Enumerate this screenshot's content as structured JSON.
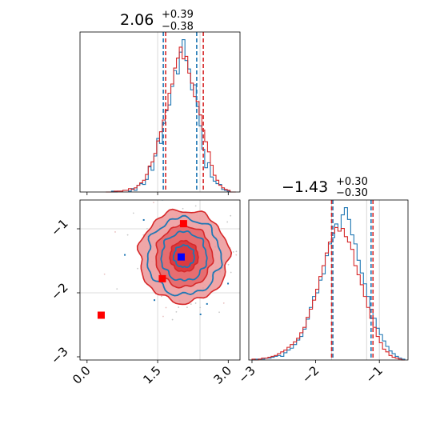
{
  "colors": {
    "blue": "#1f77b4",
    "red": "#d62728",
    "red_fill": "#e8868a",
    "grid": "#d0d0d0",
    "marker_blue": "#0000ff",
    "marker_red": "#ff0000"
  },
  "chart_data": [
    {
      "type": "histogram",
      "panel": "top-left",
      "title": {
        "value": "2.06",
        "plus": "+0.39",
        "minus": "−0.38"
      },
      "xlim": [
        -0.15,
        3.25
      ],
      "grid": true,
      "series": [
        {
          "name": "",
          "color": "blue",
          "bin_edges": [
            0.4,
            0.46,
            0.52,
            0.58,
            0.64,
            0.7,
            0.76,
            0.82,
            0.88,
            0.94,
            1.0,
            1.06,
            1.12,
            1.18,
            1.24,
            1.3,
            1.36,
            1.42,
            1.48,
            1.54,
            1.6,
            1.66,
            1.72,
            1.78,
            1.84,
            1.9,
            1.96,
            2.02,
            2.08,
            2.14,
            2.2,
            2.26,
            2.32,
            2.38,
            2.44,
            2.5,
            2.56,
            2.62,
            2.68,
            2.74,
            2.8,
            2.86,
            2.92,
            2.98,
            3.04,
            3.1,
            3.16
          ],
          "counts": [
            0,
            0,
            1,
            0,
            1,
            1,
            2,
            2,
            1,
            4,
            2,
            8,
            10,
            9,
            15,
            30,
            26,
            43,
            64,
            58,
            82,
            97,
            104,
            126,
            145,
            141,
            167,
            182,
            157,
            147,
            122,
            128,
            102,
            79,
            51,
            29,
            35,
            18,
            13,
            10,
            9,
            3,
            2,
            1,
            0,
            0
          ]
        },
        {
          "name": "",
          "color": "red",
          "bin_edges": [
            0.4,
            0.46,
            0.52,
            0.58,
            0.64,
            0.7,
            0.76,
            0.82,
            0.88,
            0.94,
            1.0,
            1.06,
            1.12,
            1.18,
            1.24,
            1.3,
            1.36,
            1.42,
            1.48,
            1.54,
            1.6,
            1.66,
            1.72,
            1.78,
            1.84,
            1.9,
            1.96,
            2.02,
            2.08,
            2.14,
            2.2,
            2.26,
            2.32,
            2.38,
            2.44,
            2.5,
            2.56,
            2.62,
            2.68,
            2.74,
            2.8,
            2.86,
            2.92,
            2.98,
            3.04,
            3.1,
            3.16
          ],
          "counts": [
            0,
            0,
            0,
            1,
            1,
            1,
            2,
            2,
            4,
            3,
            5,
            8,
            11,
            14,
            21,
            31,
            36,
            46,
            61,
            72,
            86,
            98,
            118,
            129,
            148,
            160,
            173,
            159,
            162,
            142,
            130,
            114,
            108,
            92,
            74,
            60,
            48,
            32,
            20,
            14,
            8,
            5,
            3,
            2,
            0,
            0
          ]
        }
      ],
      "vlines": [
        {
          "x": 1.62,
          "color": "blue"
        },
        {
          "x": 1.67,
          "color": "red"
        },
        {
          "x": 2.33,
          "color": "blue"
        },
        {
          "x": 2.47,
          "color": "red"
        }
      ],
      "lines": [
        {
          "x": 1.5,
          "color": "blue"
        },
        {
          "x": 2.4,
          "color": "blue"
        }
      ]
    },
    {
      "type": "histogram",
      "panel": "bottom-right",
      "title": {
        "value": "−1.43",
        "plus": "+0.30",
        "minus": "−0.30"
      },
      "xlim": [
        -3.05,
        -0.55
      ],
      "xticks": [
        -3,
        -2,
        -1
      ],
      "xtick_labels": [
        "−3",
        "−2",
        "−1"
      ],
      "grid": true,
      "series": [
        {
          "name": "",
          "color": "blue",
          "bin_edges": [
            -3.0,
            -2.95,
            -2.9,
            -2.85,
            -2.8,
            -2.75,
            -2.7,
            -2.65,
            -2.6,
            -2.55,
            -2.5,
            -2.45,
            -2.4,
            -2.35,
            -2.3,
            -2.25,
            -2.2,
            -2.15,
            -2.1,
            -2.05,
            -2.0,
            -1.95,
            -1.9,
            -1.85,
            -1.8,
            -1.75,
            -1.7,
            -1.65,
            -1.6,
            -1.55,
            -1.5,
            -1.45,
            -1.4,
            -1.35,
            -1.3,
            -1.25,
            -1.2,
            -1.15,
            -1.1,
            -1.05,
            -1.0,
            -0.95,
            -0.9,
            -0.85,
            -0.8,
            -0.75,
            -0.7,
            -0.65,
            -0.6
          ],
          "counts": [
            0,
            1,
            1,
            1,
            2,
            2,
            3,
            4,
            5,
            4,
            8,
            11,
            13,
            17,
            22,
            26,
            34,
            45,
            58,
            70,
            74,
            88,
            95,
            115,
            128,
            135,
            150,
            142,
            160,
            168,
            155,
            138,
            128,
            110,
            96,
            84,
            70,
            56,
            46,
            35,
            28,
            21,
            15,
            10,
            7,
            4,
            2,
            1
          ]
        },
        {
          "name": "",
          "color": "red",
          "bin_edges": [
            -3.0,
            -2.95,
            -2.9,
            -2.85,
            -2.8,
            -2.75,
            -2.7,
            -2.65,
            -2.6,
            -2.55,
            -2.5,
            -2.45,
            -2.4,
            -2.35,
            -2.3,
            -2.25,
            -2.2,
            -2.15,
            -2.1,
            -2.05,
            -2.0,
            -1.95,
            -1.9,
            -1.85,
            -1.8,
            -1.75,
            -1.7,
            -1.65,
            -1.6,
            -1.55,
            -1.5,
            -1.45,
            -1.4,
            -1.35,
            -1.3,
            -1.25,
            -1.2,
            -1.15,
            -1.1,
            -1.05,
            -1.0,
            -0.95,
            -0.9,
            -0.85,
            -0.8,
            -0.75,
            -0.7,
            -0.65,
            -0.6
          ],
          "counts": [
            1,
            0,
            1,
            2,
            2,
            3,
            4,
            5,
            7,
            9,
            11,
            14,
            17,
            20,
            24,
            30,
            36,
            47,
            56,
            66,
            78,
            92,
            104,
            118,
            130,
            140,
            146,
            142,
            145,
            136,
            130,
            122,
            104,
            94,
            83,
            70,
            58,
            46,
            36,
            26,
            19,
            12,
            9,
            5,
            3,
            2,
            1,
            0
          ]
        }
      ],
      "vlines": [
        {
          "x": -1.73,
          "color": "blue"
        },
        {
          "x": -1.75,
          "color": "red"
        },
        {
          "x": -1.13,
          "color": "blue"
        },
        {
          "x": -1.1,
          "color": "red"
        }
      ],
      "lines": [
        {
          "x": -1.75,
          "color": "blue"
        },
        {
          "x": -1.2,
          "color": "blue"
        },
        {
          "x": -1.0,
          "color": "blue"
        }
      ]
    },
    {
      "type": "contour",
      "panel": "bottom-left",
      "xlim": [
        -0.15,
        3.25
      ],
      "ylim": [
        -3.05,
        -0.55
      ],
      "xticks": [
        0.0,
        1.5,
        3.0
      ],
      "xtick_labels": [
        "0.0",
        "1.5",
        "3.0"
      ],
      "yticks": [
        -3,
        -2,
        -1
      ],
      "ytick_labels": [
        "−3",
        "−2",
        "−1"
      ],
      "grid": true,
      "grid_lines_x": [
        1.5,
        2.4
      ],
      "grid_lines_y": [
        -1.0,
        -2.0
      ],
      "center": {
        "x": 2.06,
        "y": -1.43
      },
      "red_levels_sigma": {
        "x": [
          0.95,
          0.6,
          0.3
        ],
        "y": [
          0.72,
          0.48,
          0.24
        ]
      },
      "blue_levels_sigma": {
        "x": [
          0.78,
          0.48,
          0.22
        ],
        "y": [
          0.6,
          0.38,
          0.17
        ]
      },
      "markers": [
        {
          "x": 2.0,
          "y": -1.44,
          "color": "marker_blue"
        },
        {
          "x": 2.05,
          "y": -0.92,
          "color": "marker_red"
        },
        {
          "x": 1.6,
          "y": -1.78,
          "color": "marker_red"
        },
        {
          "x": 0.3,
          "y": -2.35,
          "color": "marker_red"
        }
      ]
    }
  ]
}
